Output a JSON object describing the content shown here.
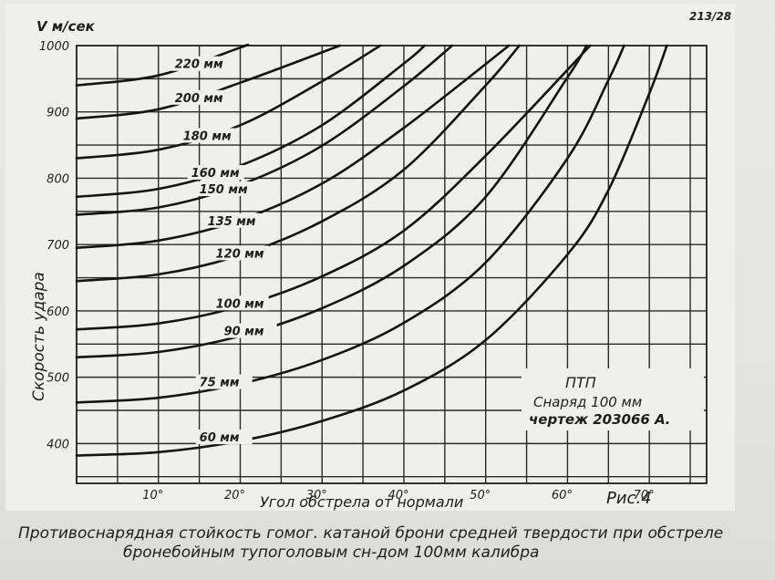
{
  "header": {
    "doc_number": "213/28"
  },
  "annotation": {
    "line1": "ПТП",
    "line2": "Снаряд   100 мм",
    "line3": "чертеж  203066 А."
  },
  "figure_label": "Рис.4",
  "caption": {
    "line1": "Противоснарядная стойкость гомог. катаной брони средней твердости при обстреле",
    "line2": "бронебойным тупоголовым сн-дом  100мм калибра"
  },
  "chart_data": {
    "type": "line",
    "title": "",
    "xlabel": "Угол   обстрела  от нормали",
    "ylabel": "Скорость  удара",
    "yunit": "V м/сек",
    "xlim": [
      0,
      77
    ],
    "ylim": [
      340,
      1000
    ],
    "xticks": [
      10,
      20,
      30,
      40,
      50,
      60,
      70
    ],
    "xtick_labels": [
      "10°",
      "20°",
      "30°",
      "40°",
      "50°",
      "60°",
      "70°"
    ],
    "yticks": [
      400,
      500,
      600,
      700,
      800,
      900,
      1000
    ],
    "ytick_labels": [
      "400",
      "500",
      "600",
      "700",
      "800",
      "900",
      "1000"
    ],
    "grid": true,
    "x": [
      0,
      10,
      20,
      30,
      40,
      50,
      60,
      65,
      70,
      75
    ],
    "series": [
      {
        "name": "60 мм",
        "values": [
          382,
          387,
          404,
          434,
          480,
          556,
          685,
          782,
          928,
          null
        ]
      },
      {
        "name": "75 мм",
        "values": [
          462,
          469,
          490,
          526,
          582,
          673,
          830,
          948,
          null,
          null
        ]
      },
      {
        "name": "90 мм",
        "values": [
          530,
          538,
          562,
          604,
          668,
          772,
          952,
          null,
          null,
          null
        ]
      },
      {
        "name": "100 мм",
        "values": [
          572,
          581,
          607,
          652,
          721,
          834,
          null,
          null,
          null,
          null
        ]
      },
      {
        "name": "120 мм",
        "values": [
          645,
          655,
          684,
          735,
          813,
          940,
          null,
          null,
          null,
          null
        ]
      },
      {
        "name": "135 мм",
        "values": [
          695,
          706,
          737,
          792,
          876,
          null,
          null,
          null,
          null,
          null
        ]
      },
      {
        "name": "150 мм",
        "values": [
          745,
          756,
          790,
          849,
          939,
          null,
          null,
          null,
          null,
          null
        ]
      },
      {
        "name": "160 мм",
        "values": [
          772,
          784,
          819,
          880,
          973,
          null,
          null,
          null,
          null,
          null
        ]
      },
      {
        "name": "180 мм",
        "values": [
          830,
          843,
          880,
          946,
          null,
          null,
          null,
          null,
          null,
          null
        ]
      },
      {
        "name": "200 мм",
        "values": [
          890,
          904,
          944,
          null,
          null,
          null,
          null,
          null,
          null,
          null
        ]
      },
      {
        "name": "220 мм",
        "values": [
          940,
          955,
          997,
          null,
          null,
          null,
          null,
          null,
          null,
          null
        ]
      }
    ],
    "legend": "labels on curves"
  }
}
